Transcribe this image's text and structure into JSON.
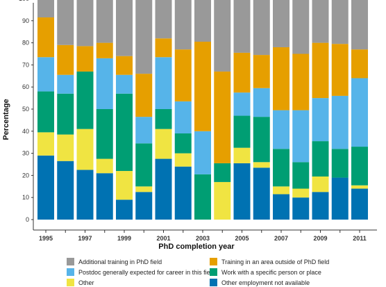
{
  "chart_data": {
    "type": "bar",
    "stacked": true,
    "xlabel": "PhD completion year",
    "ylabel": "Percentage",
    "ylim": [
      0,
      100
    ],
    "yticks": [
      0,
      10,
      20,
      30,
      40,
      50,
      60,
      70,
      80,
      90,
      100
    ],
    "categories": [
      "1995",
      "1996",
      "1997",
      "1998",
      "1999",
      "2000",
      "2001",
      "2002",
      "2003",
      "2004",
      "2005",
      "2006",
      "2007",
      "2008",
      "2009",
      "2010",
      "2011"
    ],
    "xtick_labels": [
      "1995",
      "",
      "1997",
      "",
      "1999",
      "",
      "2001",
      "",
      "2003",
      "",
      "2005",
      "",
      "2007",
      "",
      "2009",
      "",
      "2011"
    ],
    "legend_placement": "bottom",
    "grid": false,
    "series": [
      {
        "name": "Other employment not available",
        "color": "#0072b2",
        "values": [
          29,
          26.5,
          22.5,
          21,
          9,
          12.5,
          27.5,
          24,
          0,
          0,
          25.5,
          23.5,
          11.5,
          10,
          12.5,
          19,
          14
        ]
      },
      {
        "name": "Other",
        "color": "#f0e442",
        "values": [
          10.5,
          12,
          18.5,
          6.5,
          13,
          2.5,
          13.5,
          6,
          0,
          17,
          7,
          2.5,
          3.5,
          4,
          7,
          0,
          1.5
        ]
      },
      {
        "name": "Work with a specific person or place",
        "color": "#009e73",
        "values": [
          18.5,
          18.5,
          26,
          22.5,
          35,
          19.5,
          9,
          9,
          20.5,
          8.5,
          14.5,
          20.5,
          17,
          12,
          16,
          13,
          17.5
        ]
      },
      {
        "name": "Postdoc generally expected for career in this field",
        "color": "#56b4e9",
        "values": [
          15.5,
          8.5,
          0,
          23,
          8.5,
          12,
          23.5,
          14.5,
          19.5,
          0,
          10.5,
          13,
          17.5,
          23.5,
          19.5,
          24,
          31
        ]
      },
      {
        "name": "Training in an area outside of PhD field",
        "color": "#e69f00",
        "values": [
          18,
          13.5,
          11.5,
          7,
          8.5,
          19.5,
          8.5,
          23.5,
          40.5,
          41.5,
          18,
          15,
          28.5,
          25.5,
          25,
          23.5,
          13
        ]
      },
      {
        "name": "Additional training in PhD field",
        "color": "#999999",
        "values": [
          8.5,
          21.5,
          22,
          20.5,
          26,
          34,
          18,
          23,
          19.5,
          33,
          24.5,
          25.5,
          22.5,
          25,
          20,
          20.5,
          23
        ]
      }
    ]
  },
  "legend": [
    {
      "label": "Additional training in PhD field",
      "color": "#999999"
    },
    {
      "label": "Training in an area outside of PhD field",
      "color": "#e69f00"
    },
    {
      "label": "Postdoc generally expected for career in this field",
      "color": "#56b4e9"
    },
    {
      "label": "Work with a specific person or place",
      "color": "#009e73"
    },
    {
      "label": "Other",
      "color": "#f0e442"
    },
    {
      "label": "Other employment not available",
      "color": "#0072b2"
    }
  ]
}
